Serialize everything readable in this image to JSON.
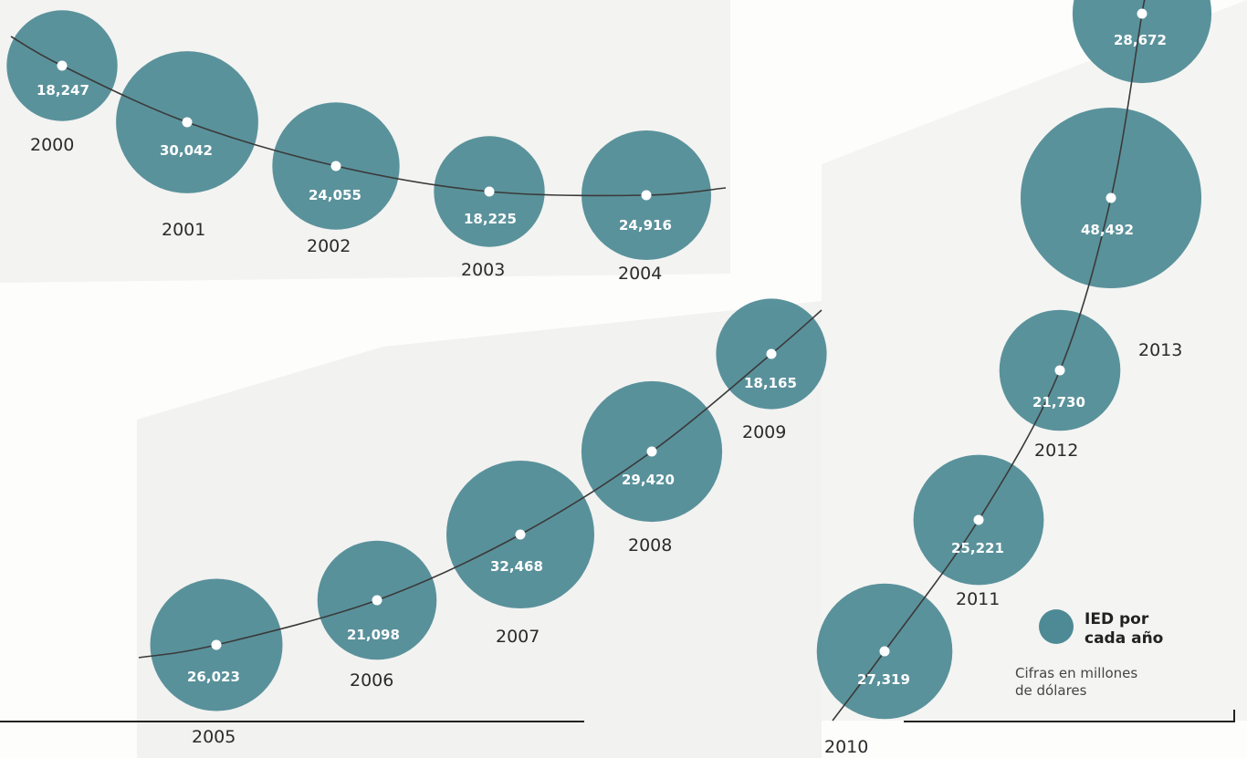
{
  "chart_data": {
    "type": "bubble",
    "title": "",
    "xlabel": "",
    "ylabel": "",
    "years": [
      "2000",
      "2001",
      "2002",
      "2003",
      "2004",
      "2005",
      "2006",
      "2007",
      "2008",
      "2009",
      "2010",
      "2011",
      "2012",
      "2013"
    ],
    "values": [
      18247,
      30042,
      24055,
      18225,
      24916,
      26023,
      21098,
      32468,
      29420,
      18165,
      27319,
      25221,
      21730,
      48492
    ],
    "value_labels": [
      "18,247",
      "30,042",
      "24,055",
      "18,225",
      "24,916",
      "26,023",
      "21,098",
      "32,468",
      "29,420",
      "18,165",
      "27,319",
      "25,221",
      "21,730",
      "48,492"
    ],
    "extra_point": {
      "label": "28,672",
      "value": 28672
    },
    "bubble_color": "#4d8a95",
    "line_color": "#3a3a3a"
  },
  "legend": {
    "title_line1": "IED por",
    "title_line2": "cada año",
    "note_line1": "Cifras en millones",
    "note_line2": "de dólares"
  }
}
